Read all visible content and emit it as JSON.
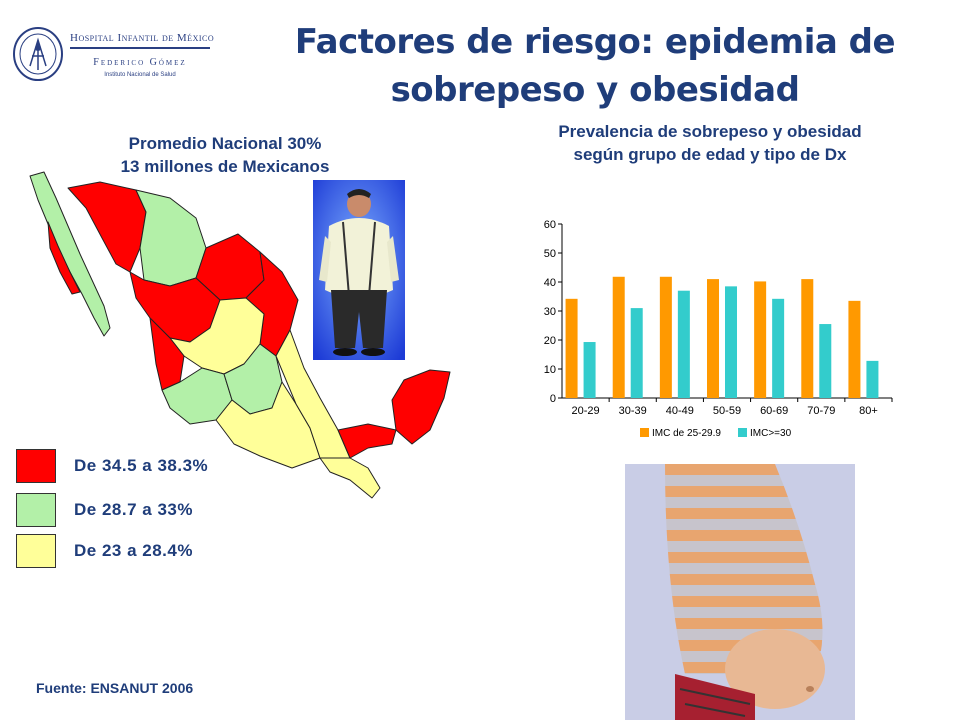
{
  "logo": {
    "line1": "Hospital Infantil de México",
    "line2": "Federico Gómez",
    "line3": "Instituto Nacional de Salud"
  },
  "title_line1": "Factores de riesgo: epidemia de",
  "title_line2": "sobrepeso y obesidad",
  "map_heading_line1": "Promedio Nacional 30%",
  "map_heading_line2": "13 millones de Mexicanos",
  "chart_heading_line1": "Prevalencia de sobrepeso y obesidad",
  "chart_heading_line2": "según grupo de edad y tipo de Dx",
  "legend": [
    {
      "label": "De 34.5 a 38.3%",
      "color": "#ff0000"
    },
    {
      "label": "De 28.7 a 33%",
      "color": "#b3f0a8"
    },
    {
      "label": "De 23 a 28.4%",
      "color": "#ffff99"
    }
  ],
  "source": "Fuente: ENSANUT 2006",
  "chart_data": {
    "type": "bar",
    "categories": [
      "20-29",
      "30-39",
      "40-49",
      "50-59",
      "60-69",
      "70-79",
      "80+"
    ],
    "series": [
      {
        "name": "IMC de 25-29.9",
        "color": "#ff9900",
        "values": [
          34.2,
          41.8,
          41.8,
          41.0,
          40.2,
          41.0,
          33.5
        ]
      },
      {
        "name": "IMC>=30",
        "color": "#33cccc",
        "values": [
          19.3,
          31.0,
          37.0,
          38.5,
          34.2,
          25.5,
          12.8
        ]
      }
    ],
    "y_ticks": [
      0,
      10,
      20,
      30,
      40,
      50,
      60
    ],
    "ylim": [
      0,
      60
    ],
    "legend_position": "bottom",
    "grid": false
  }
}
